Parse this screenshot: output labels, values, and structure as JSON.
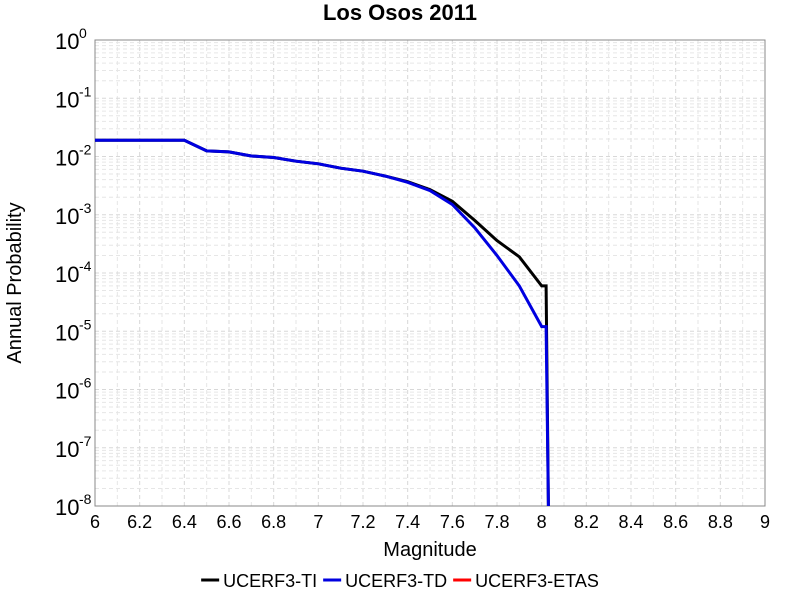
{
  "chart_data": {
    "type": "line",
    "title": "Los Osos 2011",
    "xlabel": "Magnitude",
    "ylabel": "Annual Probability",
    "xlim": [
      6,
      9
    ],
    "ylim": [
      1e-08,
      1
    ],
    "yscale": "log",
    "grid": true,
    "legend_position": "bottom",
    "xticks": [
      "6",
      "6.2",
      "6.4",
      "6.6",
      "6.8",
      "7",
      "7.2",
      "7.4",
      "7.6",
      "7.8",
      "8",
      "8.2",
      "8.4",
      "8.6",
      "8.8",
      "9"
    ],
    "yticks": [
      {
        "base": "10",
        "exp": "0"
      },
      {
        "base": "10",
        "exp": "-1"
      },
      {
        "base": "10",
        "exp": "-2"
      },
      {
        "base": "10",
        "exp": "-3"
      },
      {
        "base": "10",
        "exp": "-4"
      },
      {
        "base": "10",
        "exp": "-5"
      },
      {
        "base": "10",
        "exp": "-6"
      },
      {
        "base": "10",
        "exp": "-7"
      },
      {
        "base": "10",
        "exp": "-8"
      }
    ],
    "series": [
      {
        "name": "UCERF3-TI",
        "color": "#000000",
        "x": [
          6.0,
          6.1,
          6.2,
          6.3,
          6.4,
          6.5,
          6.6,
          6.7,
          6.8,
          6.9,
          7.0,
          7.1,
          7.2,
          7.3,
          7.4,
          7.5,
          7.6,
          7.7,
          7.8,
          7.9,
          8.0,
          8.02,
          8.03
        ],
        "y": [
          0.019,
          0.019,
          0.019,
          0.019,
          0.019,
          0.0125,
          0.012,
          0.0102,
          0.0096,
          0.0083,
          0.0075,
          0.0063,
          0.0056,
          0.0046,
          0.0037,
          0.0027,
          0.0017,
          0.0008,
          0.00036,
          0.00019,
          6e-05,
          6e-05,
          1e-08
        ]
      },
      {
        "name": "UCERF3-TD",
        "color": "#0000e0",
        "x": [
          6.0,
          6.1,
          6.2,
          6.3,
          6.4,
          6.5,
          6.6,
          6.7,
          6.8,
          6.9,
          7.0,
          7.1,
          7.2,
          7.3,
          7.4,
          7.5,
          7.6,
          7.7,
          7.8,
          7.9,
          8.0,
          8.02,
          8.03
        ],
        "y": [
          0.019,
          0.019,
          0.019,
          0.019,
          0.019,
          0.0125,
          0.012,
          0.0102,
          0.0096,
          0.0083,
          0.0075,
          0.0063,
          0.0056,
          0.0046,
          0.0036,
          0.0026,
          0.0015,
          0.0006,
          0.0002,
          6e-05,
          1.2e-05,
          1.2e-05,
          1e-08
        ]
      },
      {
        "name": "UCERF3-ETAS",
        "color": "#ff0000",
        "x": [],
        "y": []
      }
    ]
  }
}
